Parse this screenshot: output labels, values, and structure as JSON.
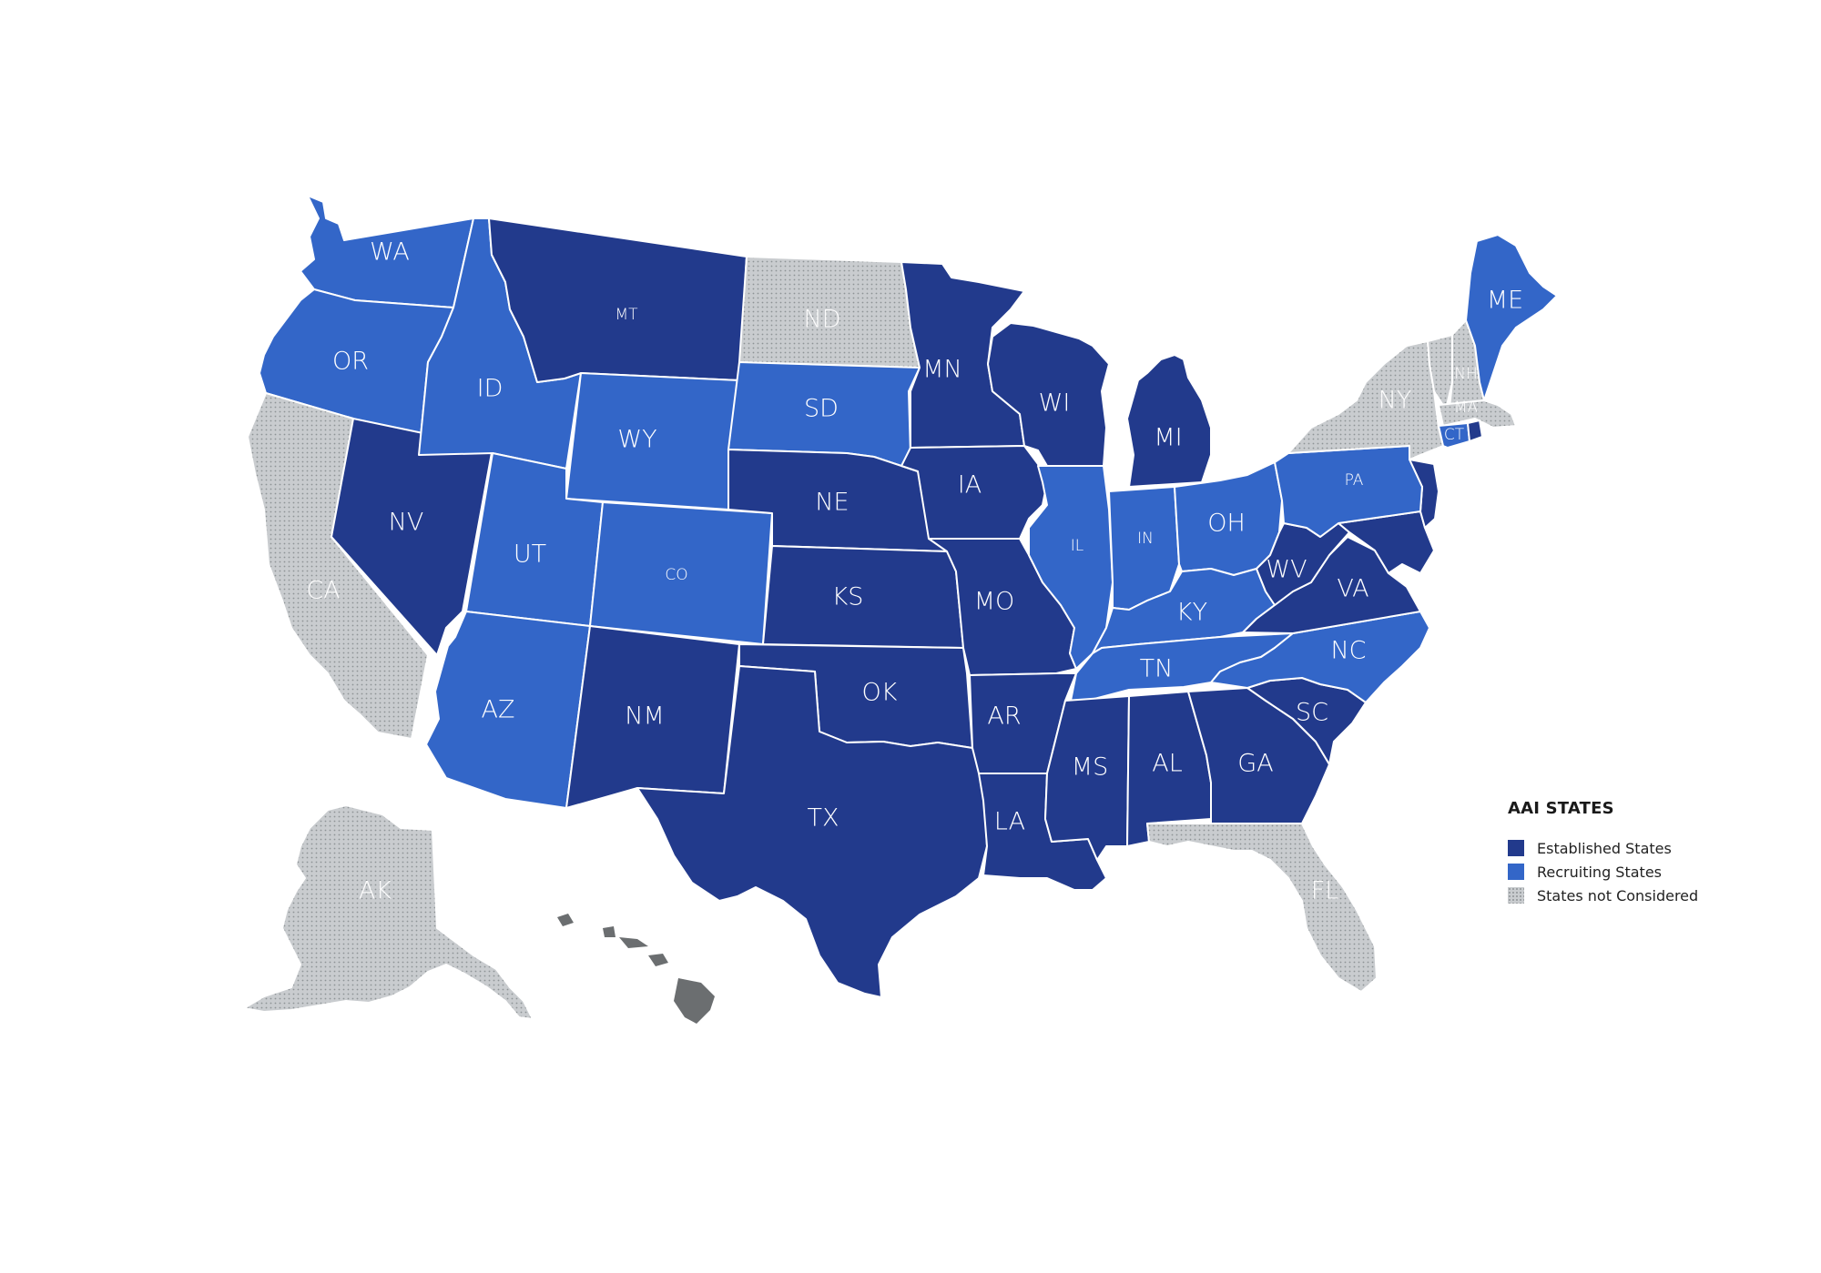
{
  "colors": {
    "established": "#223a8c",
    "recruiting": "#3366c8",
    "not_considered": "#c9cccf",
    "hawaii": "#6b6e70"
  },
  "legend": {
    "title": "AAI STATES",
    "items": [
      {
        "label": "Established States",
        "category": "established"
      },
      {
        "label": "Recruiting States",
        "category": "recruiting"
      },
      {
        "label": "States not Considered",
        "category": "not_considered"
      }
    ]
  },
  "states": [
    {
      "abbr": "WA",
      "category": "recruiting"
    },
    {
      "abbr": "OR",
      "category": "recruiting"
    },
    {
      "abbr": "CA",
      "category": "not_considered"
    },
    {
      "abbr": "NV",
      "category": "established"
    },
    {
      "abbr": "ID",
      "category": "recruiting"
    },
    {
      "abbr": "MT",
      "category": "established"
    },
    {
      "abbr": "WY",
      "category": "recruiting"
    },
    {
      "abbr": "UT",
      "category": "recruiting"
    },
    {
      "abbr": "CO",
      "category": "recruiting"
    },
    {
      "abbr": "AZ",
      "category": "recruiting"
    },
    {
      "abbr": "NM",
      "category": "established"
    },
    {
      "abbr": "ND",
      "category": "not_considered"
    },
    {
      "abbr": "SD",
      "category": "recruiting"
    },
    {
      "abbr": "NE",
      "category": "established"
    },
    {
      "abbr": "KS",
      "category": "established"
    },
    {
      "abbr": "OK",
      "category": "established"
    },
    {
      "abbr": "TX",
      "category": "established"
    },
    {
      "abbr": "MN",
      "category": "established"
    },
    {
      "abbr": "IA",
      "category": "established"
    },
    {
      "abbr": "MO",
      "category": "established"
    },
    {
      "abbr": "AR",
      "category": "established"
    },
    {
      "abbr": "LA",
      "category": "established"
    },
    {
      "abbr": "WI",
      "category": "established"
    },
    {
      "abbr": "IL",
      "category": "recruiting"
    },
    {
      "abbr": "MI",
      "category": "established"
    },
    {
      "abbr": "IN",
      "category": "recruiting"
    },
    {
      "abbr": "OH",
      "category": "recruiting"
    },
    {
      "abbr": "KY",
      "category": "recruiting"
    },
    {
      "abbr": "TN",
      "category": "recruiting"
    },
    {
      "abbr": "MS",
      "category": "established"
    },
    {
      "abbr": "AL",
      "category": "established"
    },
    {
      "abbr": "GA",
      "category": "established"
    },
    {
      "abbr": "FL",
      "category": "not_considered"
    },
    {
      "abbr": "SC",
      "category": "established"
    },
    {
      "abbr": "NC",
      "category": "recruiting"
    },
    {
      "abbr": "VA",
      "category": "established"
    },
    {
      "abbr": "WV",
      "category": "established"
    },
    {
      "abbr": "PA",
      "category": "recruiting"
    },
    {
      "abbr": "NY",
      "category": "not_considered"
    },
    {
      "abbr": "ME",
      "category": "recruiting"
    },
    {
      "abbr": "NH",
      "category": "not_considered"
    },
    {
      "abbr": "MA",
      "category": "not_considered"
    },
    {
      "abbr": "CT",
      "category": "recruiting"
    },
    {
      "abbr": "AK",
      "category": "not_considered"
    }
  ]
}
